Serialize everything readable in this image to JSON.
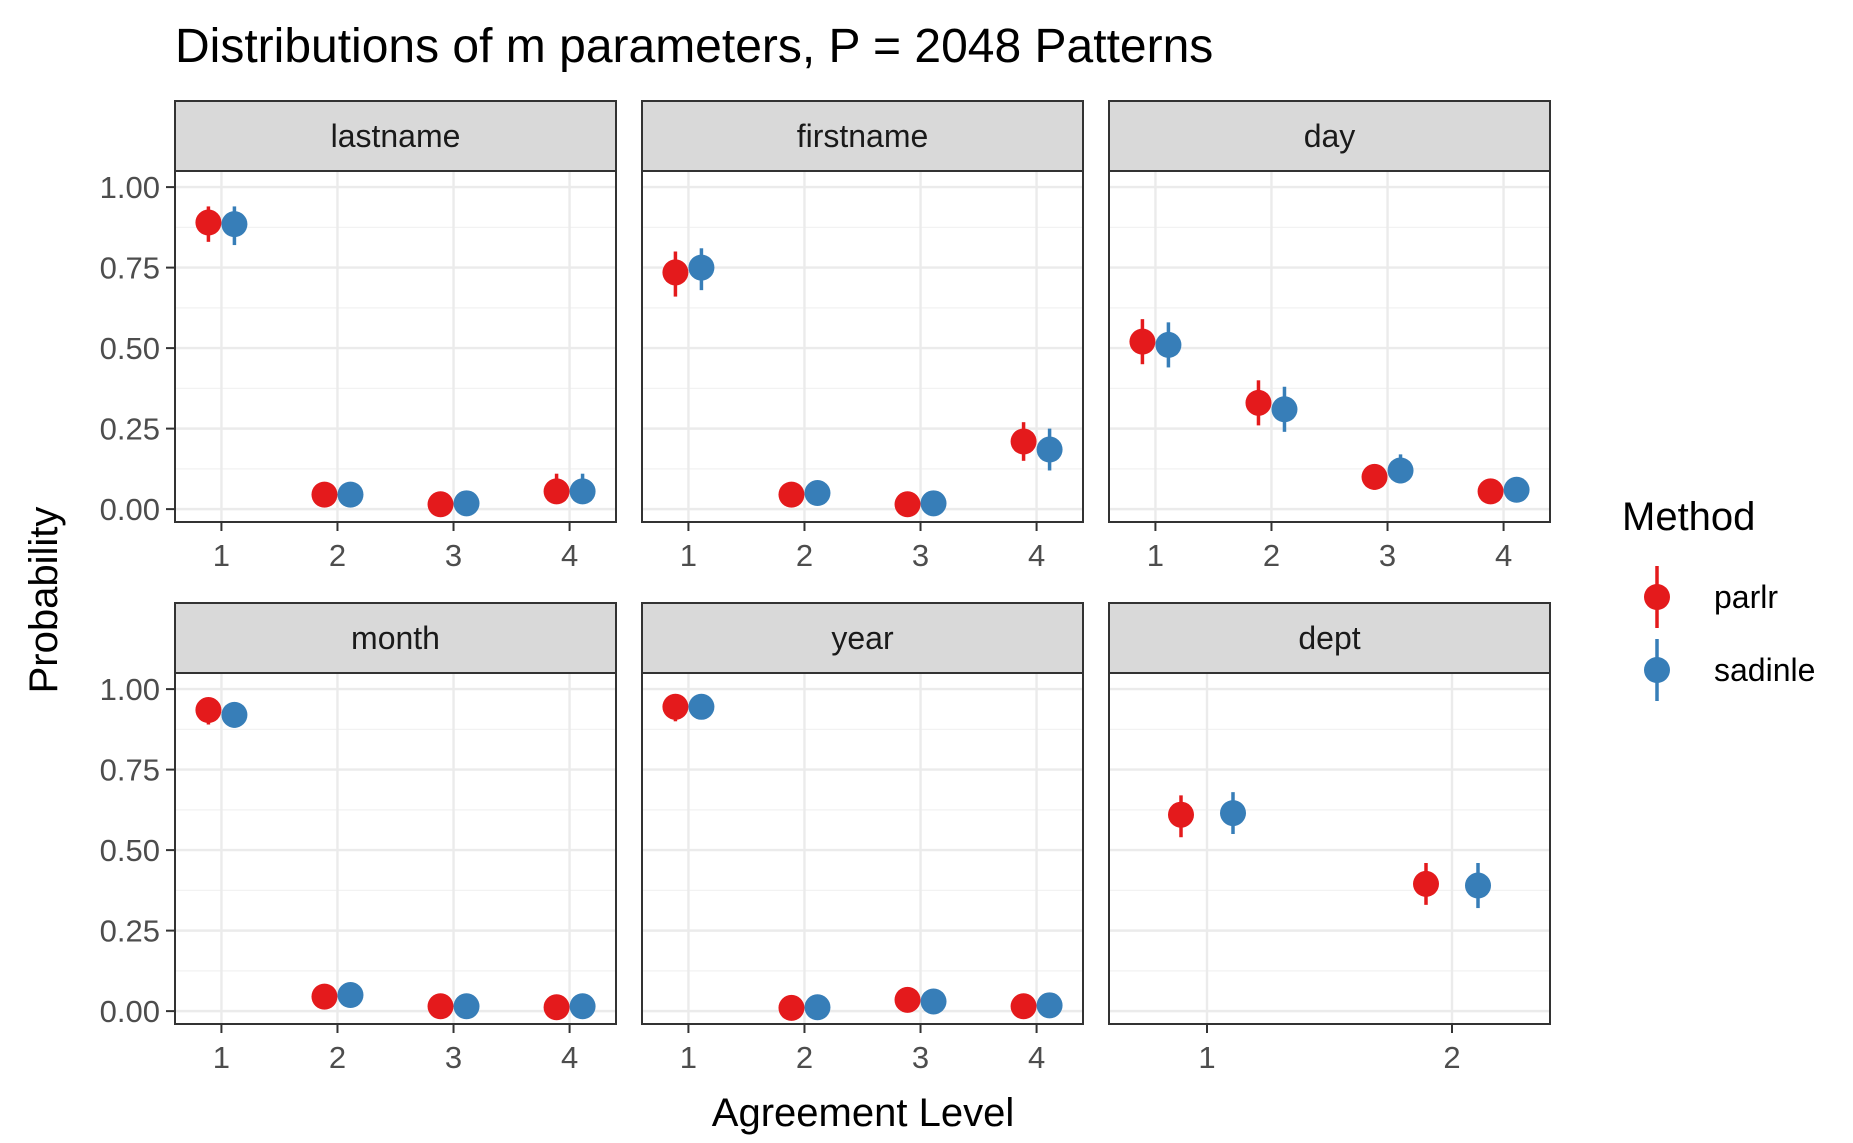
{
  "chart_data": {
    "type": "scatter",
    "title": "Distributions of m parameters, P = 2048 Patterns",
    "xlabel": "Agreement Level",
    "ylabel": "Probability",
    "ylim": [
      -0.04,
      1.05
    ],
    "y_ticks": [
      "0.00",
      "0.25",
      "0.50",
      "0.75",
      "1.00"
    ],
    "grid": true,
    "legend": {
      "title": "Method",
      "placement": "right",
      "entries": [
        {
          "name": "parlr",
          "color": "#E41A1C"
        },
        {
          "name": "sadinle",
          "color": "#377EB8"
        }
      ]
    },
    "panels": [
      {
        "name": "lastname",
        "x": [
          "1",
          "2",
          "3",
          "4"
        ],
        "series": [
          {
            "name": "parlr",
            "values": [
              0.89,
              0.045,
              0.015,
              0.055
            ],
            "lower": [
              0.83,
              0.03,
              0.005,
              0.02
            ],
            "upper": [
              0.94,
              0.06,
              0.03,
              0.11
            ]
          },
          {
            "name": "sadinle",
            "values": [
              0.885,
              0.045,
              0.018,
              0.055
            ],
            "lower": [
              0.82,
              0.03,
              0.005,
              0.02
            ],
            "upper": [
              0.94,
              0.06,
              0.03,
              0.11
            ]
          }
        ]
      },
      {
        "name": "firstname",
        "x": [
          "1",
          "2",
          "3",
          "4"
        ],
        "series": [
          {
            "name": "parlr",
            "values": [
              0.735,
              0.045,
              0.015,
              0.21
            ],
            "lower": [
              0.66,
              0.03,
              0.005,
              0.15
            ],
            "upper": [
              0.8,
              0.06,
              0.03,
              0.27
            ]
          },
          {
            "name": "sadinle",
            "values": [
              0.75,
              0.05,
              0.018,
              0.185
            ],
            "lower": [
              0.68,
              0.03,
              0.005,
              0.12
            ],
            "upper": [
              0.81,
              0.07,
              0.03,
              0.25
            ]
          }
        ]
      },
      {
        "name": "day",
        "x": [
          "1",
          "2",
          "3",
          "4"
        ],
        "series": [
          {
            "name": "parlr",
            "values": [
              0.52,
              0.33,
              0.1,
              0.055
            ],
            "lower": [
              0.45,
              0.26,
              0.06,
              0.04
            ],
            "upper": [
              0.59,
              0.4,
              0.14,
              0.07
            ]
          },
          {
            "name": "sadinle",
            "values": [
              0.51,
              0.31,
              0.12,
              0.06
            ],
            "lower": [
              0.44,
              0.24,
              0.08,
              0.04
            ],
            "upper": [
              0.58,
              0.38,
              0.17,
              0.08
            ]
          }
        ]
      },
      {
        "name": "month",
        "x": [
          "1",
          "2",
          "3",
          "4"
        ],
        "series": [
          {
            "name": "parlr",
            "values": [
              0.935,
              0.045,
              0.015,
              0.012
            ],
            "lower": [
              0.89,
              0.03,
              0.005,
              0.003
            ],
            "upper": [
              0.97,
              0.06,
              0.025,
              0.02
            ]
          },
          {
            "name": "sadinle",
            "values": [
              0.92,
              0.05,
              0.015,
              0.015
            ],
            "lower": [
              0.88,
              0.03,
              0.005,
              0.005
            ],
            "upper": [
              0.96,
              0.07,
              0.025,
              0.025
            ]
          }
        ]
      },
      {
        "name": "year",
        "x": [
          "1",
          "2",
          "3",
          "4"
        ],
        "series": [
          {
            "name": "parlr",
            "values": [
              0.945,
              0.01,
              0.035,
              0.015
            ],
            "lower": [
              0.9,
              0.003,
              0.02,
              0.005
            ],
            "upper": [
              0.97,
              0.02,
              0.05,
              0.025
            ]
          },
          {
            "name": "sadinle",
            "values": [
              0.945,
              0.012,
              0.03,
              0.018
            ],
            "lower": [
              0.92,
              0.003,
              0.015,
              0.005
            ],
            "upper": [
              0.97,
              0.02,
              0.045,
              0.03
            ]
          }
        ]
      },
      {
        "name": "dept",
        "x": [
          "1",
          "2"
        ],
        "series": [
          {
            "name": "parlr",
            "values": [
              0.61,
              0.395
            ],
            "lower": [
              0.54,
              0.33
            ],
            "upper": [
              0.67,
              0.46
            ]
          },
          {
            "name": "sadinle",
            "values": [
              0.615,
              0.39
            ],
            "lower": [
              0.55,
              0.32
            ],
            "upper": [
              0.68,
              0.46
            ]
          }
        ]
      }
    ]
  }
}
